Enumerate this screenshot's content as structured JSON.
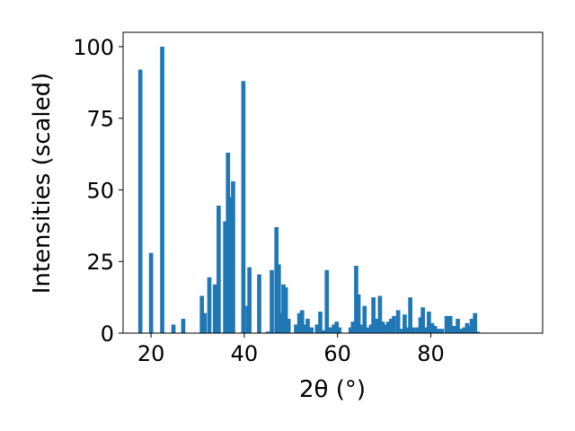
{
  "chart_data": {
    "type": "bar",
    "xlabel": "2θ (°)",
    "ylabel": "Intensities (scaled)",
    "xlim": [
      14,
      104
    ],
    "ylim": [
      0,
      105
    ],
    "xticks": [
      20,
      40,
      60,
      80
    ],
    "yticks": [
      0,
      25,
      50,
      75,
      100
    ],
    "grid": false,
    "bar_color": "#1f77b4",
    "bar_width": 0.9,
    "series": [
      {
        "x": [
          17.7,
          20.0,
          22.4,
          24.8,
          26.9,
          30.9,
          31.5,
          32.5,
          33.7,
          34.5,
          35.9,
          36.5,
          37.0,
          37.6,
          39.8,
          40.7,
          41.1,
          43.2,
          45.0,
          45.9,
          46.9,
          47.4,
          47.9,
          48.4,
          48.9,
          49.5,
          51.1,
          51.8,
          52.4,
          53.0,
          53.6,
          54.4,
          55.6,
          56.3,
          57.0,
          57.7,
          58.4,
          59.2,
          59.8,
          60.4,
          62.8,
          63.3,
          64.0,
          64.5,
          65.0,
          65.8,
          66.5,
          67.2,
          67.7,
          68.4,
          69.1,
          69.7,
          70.3,
          70.9,
          71.5,
          72.1,
          73.0,
          73.8,
          74.4,
          75.1,
          75.6,
          76.3,
          77.2,
          77.8,
          78.3,
          78.9,
          79.6,
          80.3,
          80.9,
          81.6,
          82.4,
          83.4,
          84.2,
          85.0,
          85.8,
          86.4,
          87.2,
          87.8,
          88.3,
          88.8,
          89.5,
          90.1
        ],
        "values": [
          92,
          28,
          100,
          3,
          5,
          13,
          7,
          19.5,
          17,
          44.5,
          39,
          63,
          47.5,
          53,
          88,
          9.5,
          23,
          20.5,
          0.5,
          22,
          37,
          24,
          7,
          17,
          16,
          5,
          3,
          7,
          8,
          3,
          5,
          2,
          3,
          7.5,
          1,
          22,
          2,
          3,
          4,
          2,
          2,
          4,
          23.5,
          13.5,
          3,
          9.5,
          2,
          3,
          12.5,
          5,
          13,
          4,
          3,
          4,
          5,
          6,
          8,
          1.5,
          6.5,
          2,
          12.5,
          2,
          2,
          5.5,
          9,
          2,
          7.5,
          3.5,
          2.5,
          1.5,
          1.5,
          6,
          6,
          2.5,
          5,
          1.5,
          2,
          3.5,
          2.5,
          5,
          7,
          0.5
        ]
      }
    ]
  }
}
